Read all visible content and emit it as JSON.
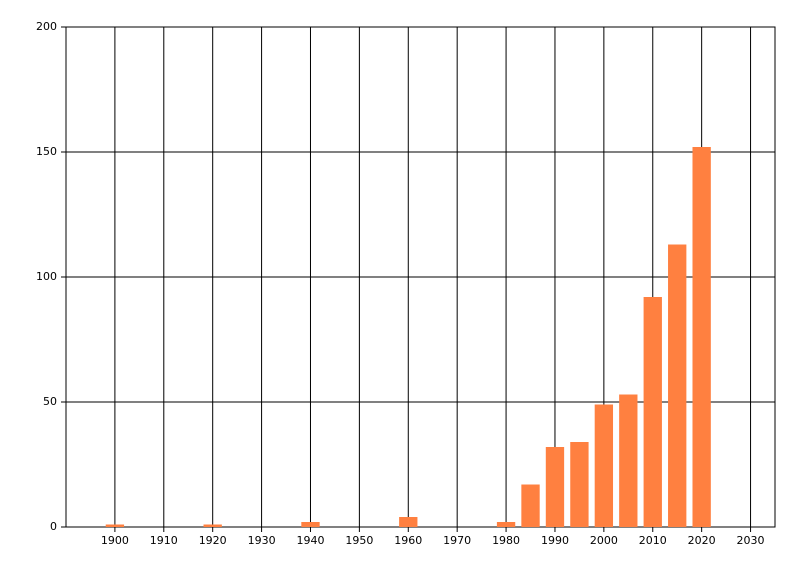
{
  "chart_data": {
    "type": "bar",
    "x": [
      1900,
      1920,
      1940,
      1960,
      1980,
      1985,
      1990,
      1995,
      2000,
      2005,
      2010,
      2015,
      2020
    ],
    "values": [
      1,
      1,
      2,
      4,
      2,
      17,
      32,
      34,
      49,
      53,
      92,
      113,
      152
    ],
    "color": "#ff8040",
    "xlim": [
      1890,
      2035
    ],
    "xticks": [
      1900,
      1910,
      1920,
      1930,
      1940,
      1950,
      1960,
      1970,
      1980,
      1990,
      2000,
      2010,
      2020,
      2030
    ],
    "ylim": [
      0,
      200
    ],
    "yticks": [
      0,
      50,
      100,
      150,
      200
    ],
    "grid": true
  }
}
